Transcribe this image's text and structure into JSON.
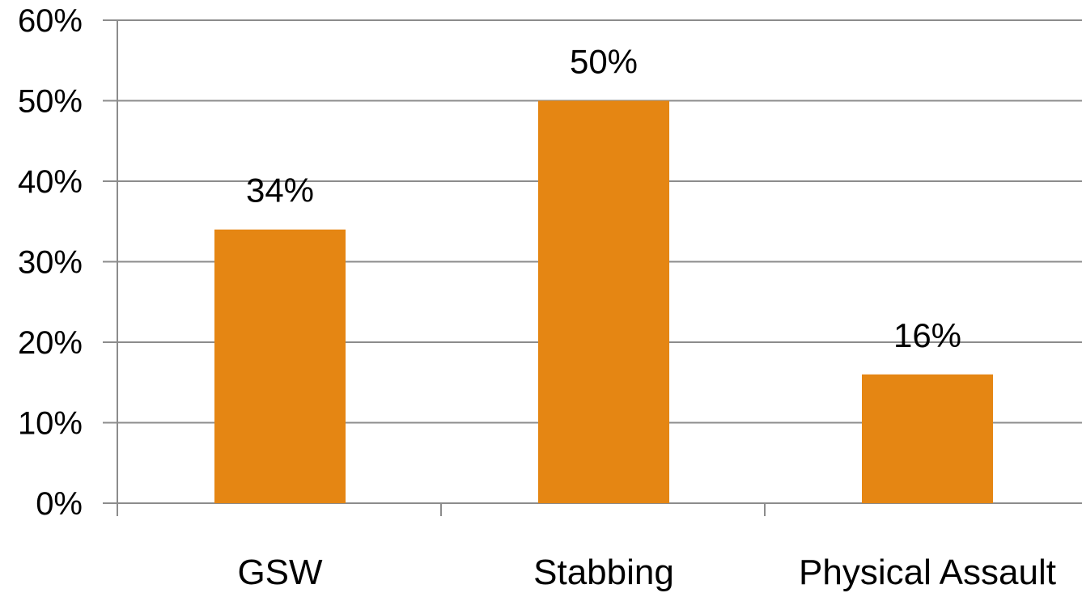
{
  "chart_data": {
    "type": "bar",
    "categories": [
      "GSW",
      "Stabbing",
      "Physical Assault"
    ],
    "values": [
      34,
      50,
      16
    ],
    "data_labels": [
      "34%",
      "50%",
      "16%"
    ],
    "y_tick_labels": [
      "0%",
      "10%",
      "20%",
      "30%",
      "40%",
      "50%",
      "60%"
    ],
    "y_ticks": [
      0,
      10,
      20,
      30,
      40,
      50,
      60
    ],
    "ylim": [
      0,
      60
    ],
    "title": "",
    "xlabel": "",
    "ylabel": "",
    "grid": true,
    "legend": "none",
    "bar_color": "#E58613"
  }
}
